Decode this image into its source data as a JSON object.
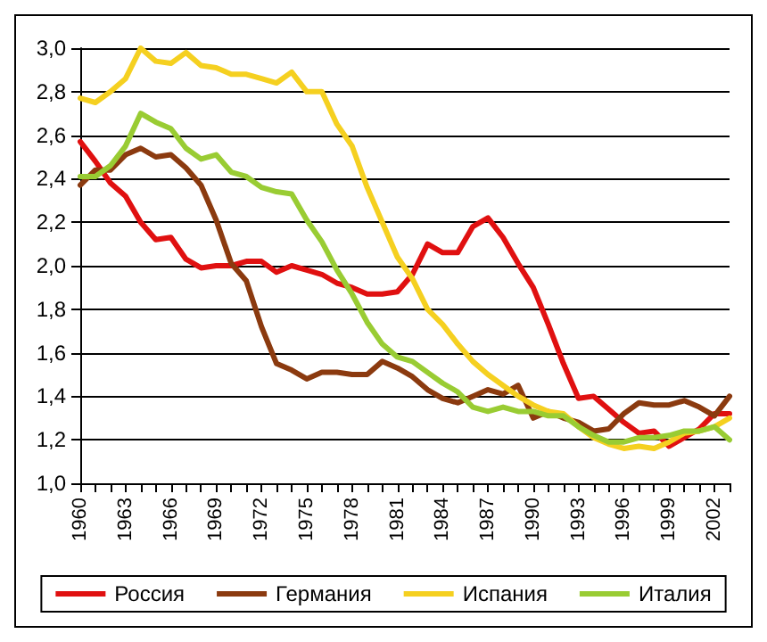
{
  "chart_data": {
    "type": "line",
    "categories": [
      "1960",
      null,
      null,
      "1963",
      null,
      null,
      "1966",
      null,
      null,
      "1969",
      null,
      null,
      "1972",
      null,
      null,
      "1975",
      null,
      null,
      "1978",
      null,
      null,
      "1981",
      null,
      null,
      "1984",
      null,
      null,
      "1987",
      null,
      null,
      "1990",
      null,
      null,
      "1993",
      null,
      null,
      "1996",
      null,
      null,
      "1999",
      null,
      null,
      "2002",
      null
    ],
    "series": [
      {
        "name": "Россия",
        "color": "#e01010",
        "values": [
          2.57,
          2.48,
          2.38,
          2.32,
          2.2,
          2.12,
          2.13,
          2.03,
          1.99,
          2.0,
          2.0,
          2.02,
          2.02,
          1.97,
          2.0,
          1.98,
          1.96,
          1.92,
          1.9,
          1.87,
          1.87,
          1.88,
          1.96,
          2.1,
          2.06,
          2.06,
          2.18,
          2.22,
          2.13,
          2.01,
          1.9,
          1.73,
          1.55,
          1.39,
          1.4,
          1.34,
          1.28,
          1.23,
          1.24,
          1.17,
          1.21,
          1.25,
          1.32,
          1.32
        ]
      },
      {
        "name": "Германия",
        "color": "#8b3a0f",
        "values": [
          2.37,
          2.44,
          2.44,
          2.51,
          2.54,
          2.5,
          2.51,
          2.45,
          2.37,
          2.21,
          2.01,
          1.93,
          1.72,
          1.55,
          1.52,
          1.48,
          1.51,
          1.51,
          1.5,
          1.5,
          1.56,
          1.53,
          1.49,
          1.43,
          1.39,
          1.37,
          1.4,
          1.43,
          1.41,
          1.45,
          1.3,
          1.33,
          1.3,
          1.28,
          1.24,
          1.25,
          1.32,
          1.37,
          1.36,
          1.36,
          1.38,
          1.35,
          1.31,
          1.4
        ]
      },
      {
        "name": "Испания",
        "color": "#f5d020",
        "values": [
          2.77,
          2.75,
          2.8,
          2.86,
          3.0,
          2.94,
          2.93,
          2.98,
          2.92,
          2.91,
          2.88,
          2.88,
          2.86,
          2.84,
          2.89,
          2.8,
          2.8,
          2.65,
          2.55,
          2.36,
          2.2,
          2.04,
          1.94,
          1.8,
          1.73,
          1.64,
          1.56,
          1.5,
          1.45,
          1.4,
          1.36,
          1.33,
          1.32,
          1.26,
          1.21,
          1.18,
          1.16,
          1.17,
          1.16,
          1.19,
          1.23,
          1.24,
          1.26,
          1.3
        ]
      },
      {
        "name": "Италия",
        "color": "#99cc33",
        "values": [
          2.41,
          2.41,
          2.46,
          2.55,
          2.7,
          2.66,
          2.63,
          2.54,
          2.49,
          2.51,
          2.43,
          2.41,
          2.36,
          2.34,
          2.33,
          2.21,
          2.11,
          1.98,
          1.87,
          1.74,
          1.64,
          1.58,
          1.56,
          1.51,
          1.46,
          1.42,
          1.35,
          1.33,
          1.35,
          1.33,
          1.33,
          1.31,
          1.31,
          1.26,
          1.22,
          1.19,
          1.19,
          1.21,
          1.21,
          1.22,
          1.24,
          1.24,
          1.26,
          1.2
        ]
      }
    ],
    "ylim": [
      1.0,
      3.0
    ],
    "yticks": [
      {
        "value": 1.0,
        "label": "1,0"
      },
      {
        "value": 1.2,
        "label": "1,2"
      },
      {
        "value": 1.4,
        "label": "1,4"
      },
      {
        "value": 1.6,
        "label": "1,6"
      },
      {
        "value": 1.8,
        "label": "1,8"
      },
      {
        "value": 2.0,
        "label": "2,0"
      },
      {
        "value": 2.2,
        "label": "2,2"
      },
      {
        "value": 2.4,
        "label": "2,4"
      },
      {
        "value": 2.6,
        "label": "2,6"
      },
      {
        "value": 2.8,
        "label": "2,8"
      },
      {
        "value": 3.0,
        "label": "3,0"
      }
    ],
    "grid": "y",
    "legend": "bottom",
    "marker": "none",
    "line_style": "solid"
  }
}
